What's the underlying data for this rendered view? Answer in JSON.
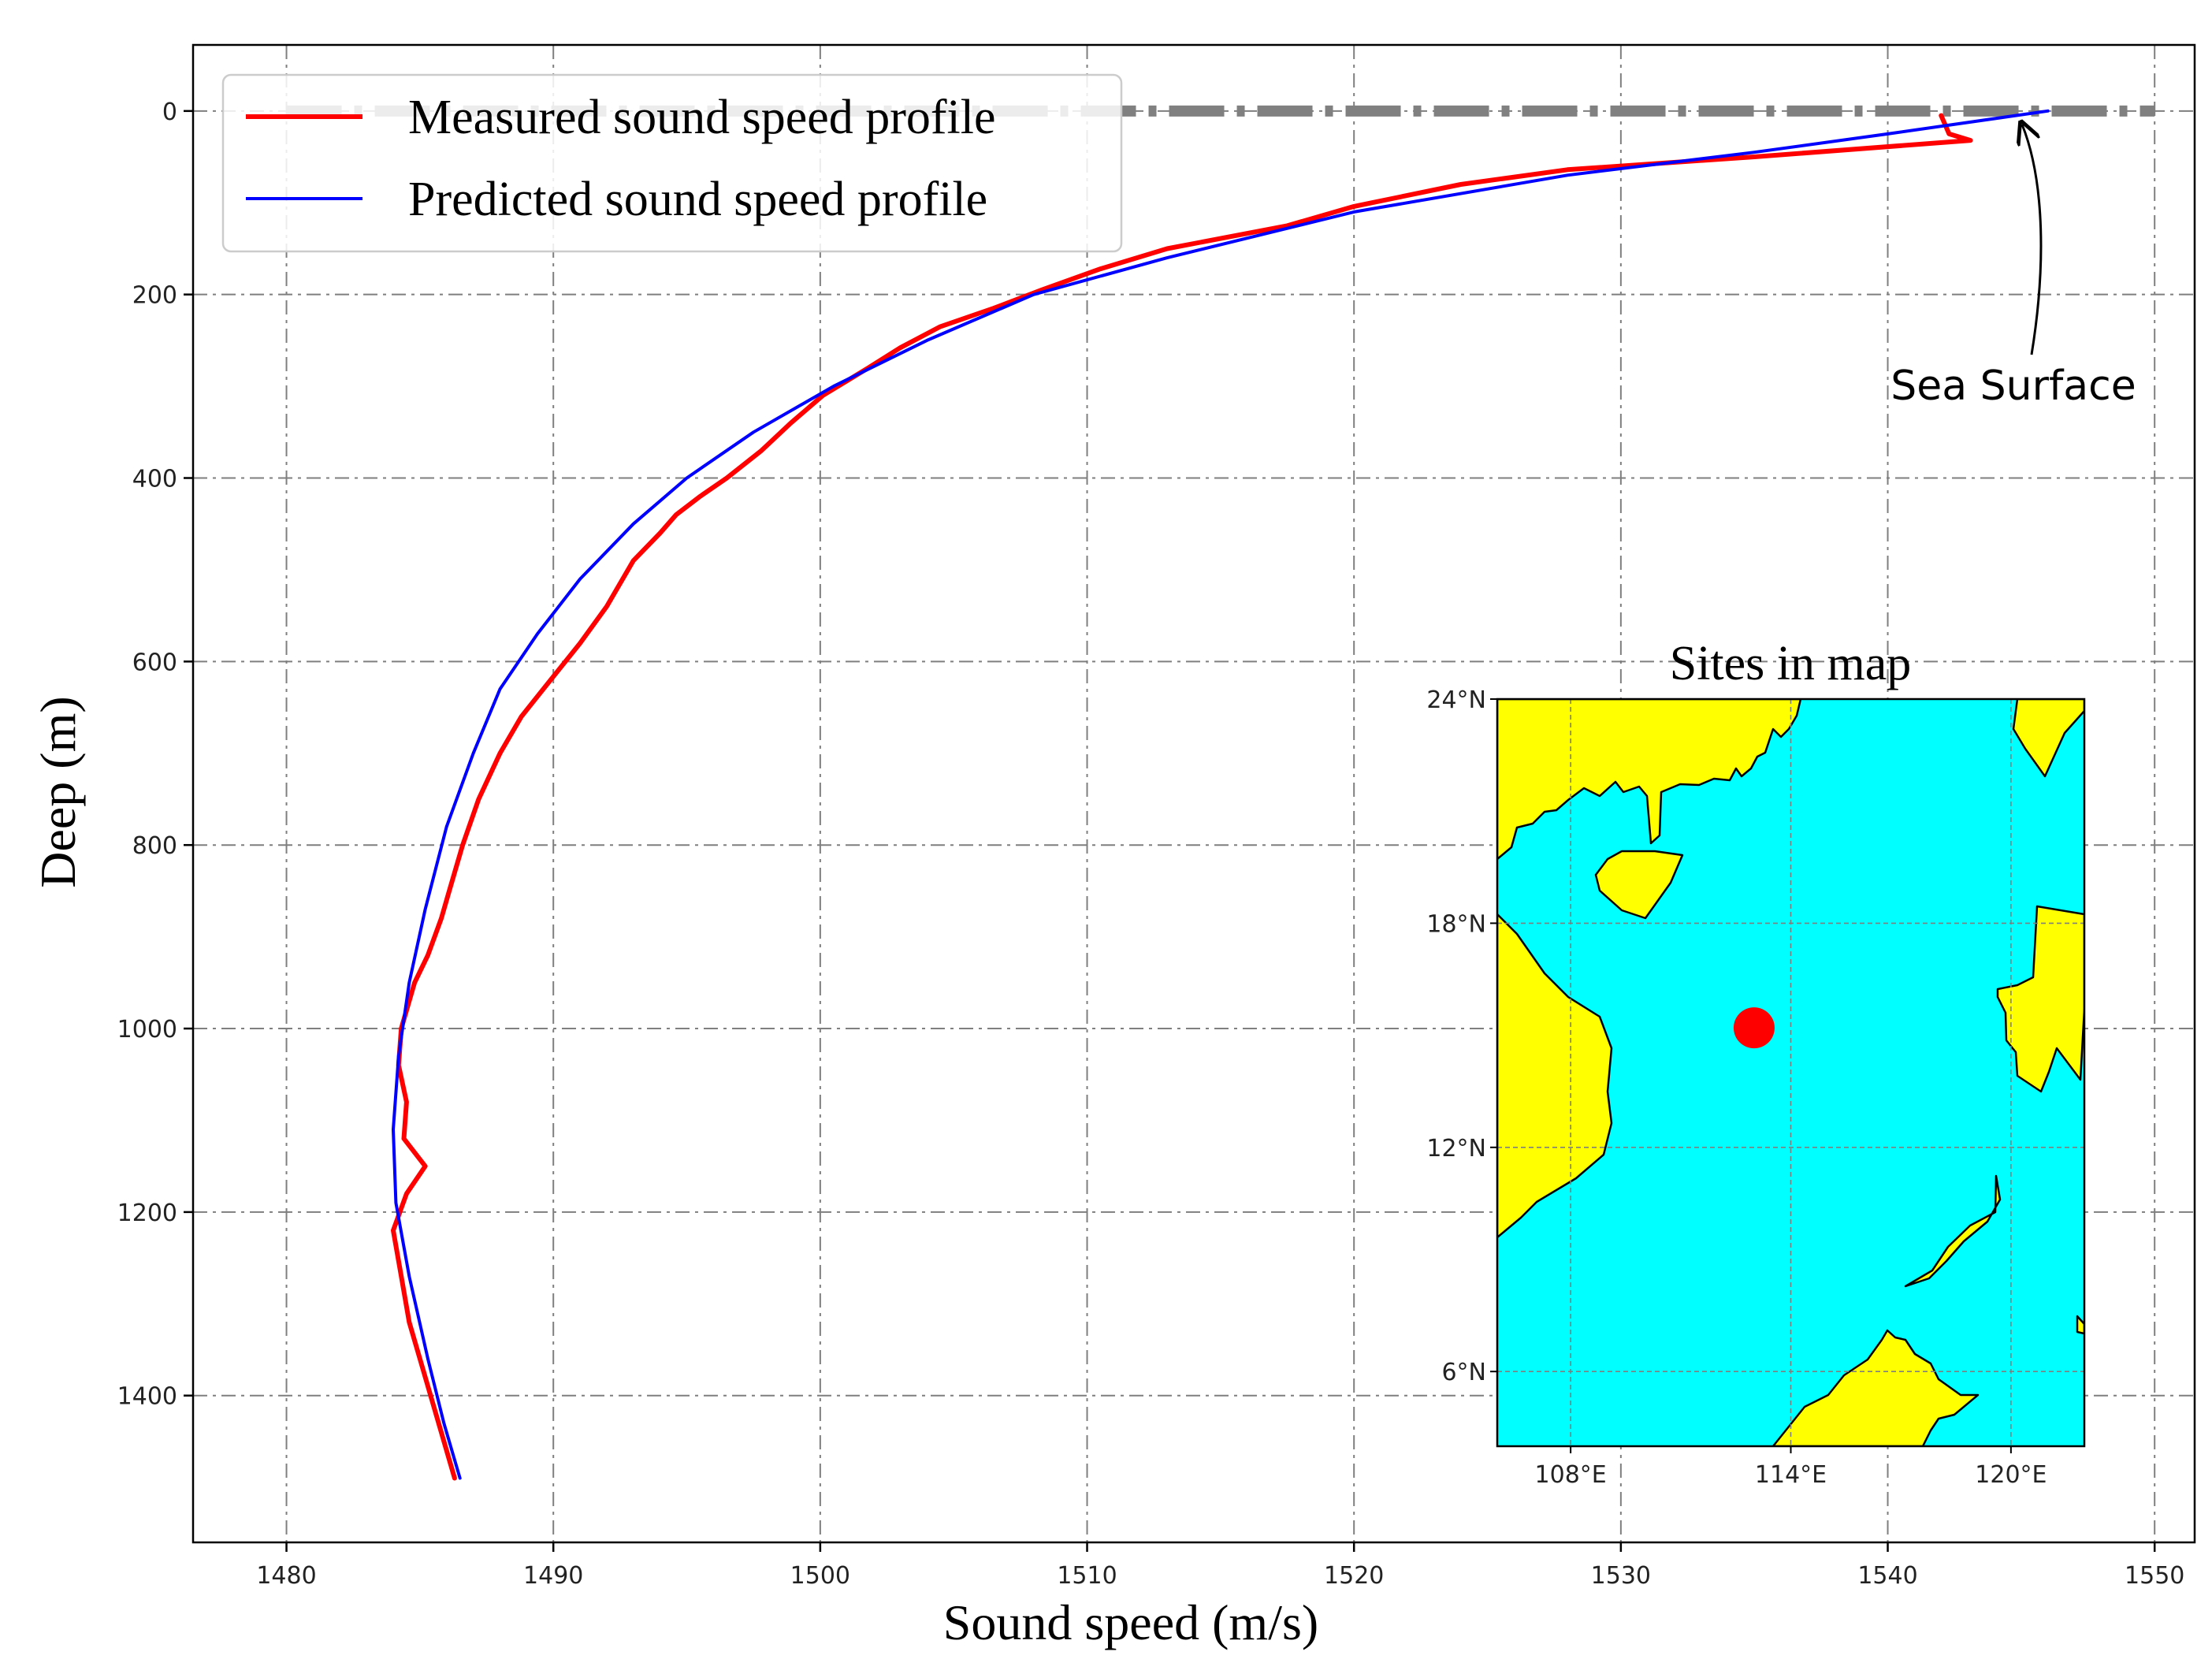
{
  "chart_data": {
    "type": "line",
    "xlabel": "Sound speed (m/s)",
    "ylabel": "Deep (m)",
    "xlim": [
      1476.5,
      1551.5
    ],
    "ylim": [
      1560,
      -72
    ],
    "y_inverted": true,
    "xticks": [
      1480,
      1490,
      1500,
      1510,
      1520,
      1530,
      1540,
      1550
    ],
    "yticks": [
      0,
      200,
      400,
      600,
      800,
      1000,
      1200,
      1400
    ],
    "grid": true,
    "legend_position": "upper-left",
    "series": [
      {
        "name": "Measured sound speed profile",
        "color": "#ff0000",
        "points": [
          [
            1542.0,
            5
          ],
          [
            1542.3,
            25
          ],
          [
            1543.1,
            32
          ],
          [
            1535.0,
            50
          ],
          [
            1528.0,
            64
          ],
          [
            1524.0,
            80
          ],
          [
            1520.0,
            104
          ],
          [
            1517.5,
            125
          ],
          [
            1513.0,
            150
          ],
          [
            1510.5,
            172
          ],
          [
            1508.3,
            195
          ],
          [
            1506.5,
            215
          ],
          [
            1504.5,
            235
          ],
          [
            1503.0,
            258
          ],
          [
            1501.8,
            280
          ],
          [
            1500.1,
            310
          ],
          [
            1498.9,
            340
          ],
          [
            1497.8,
            370
          ],
          [
            1496.5,
            400
          ],
          [
            1495.5,
            420
          ],
          [
            1494.6,
            440
          ],
          [
            1494.0,
            460
          ],
          [
            1493.0,
            490
          ],
          [
            1492.0,
            540
          ],
          [
            1491.0,
            580
          ],
          [
            1489.9,
            620
          ],
          [
            1488.8,
            660
          ],
          [
            1488.0,
            700
          ],
          [
            1487.2,
            750
          ],
          [
            1486.6,
            800
          ],
          [
            1486.1,
            850
          ],
          [
            1485.8,
            880
          ],
          [
            1485.3,
            920
          ],
          [
            1484.8,
            950
          ],
          [
            1484.3,
            1000
          ],
          [
            1484.2,
            1040
          ],
          [
            1484.5,
            1080
          ],
          [
            1484.4,
            1120
          ],
          [
            1485.2,
            1150
          ],
          [
            1484.5,
            1180
          ],
          [
            1484.0,
            1220
          ],
          [
            1484.3,
            1270
          ],
          [
            1484.6,
            1320
          ],
          [
            1485.0,
            1360
          ],
          [
            1485.6,
            1420
          ],
          [
            1486.3,
            1490
          ]
        ]
      },
      {
        "name": "Predicted sound speed profile",
        "color": "#0000ff",
        "points": [
          [
            1546.0,
            0
          ],
          [
            1540.0,
            25
          ],
          [
            1535.0,
            45
          ],
          [
            1528.0,
            70
          ],
          [
            1520.0,
            110
          ],
          [
            1513.0,
            160
          ],
          [
            1508.0,
            200
          ],
          [
            1504.0,
            250
          ],
          [
            1500.5,
            300
          ],
          [
            1497.5,
            350
          ],
          [
            1495.0,
            400
          ],
          [
            1493.0,
            450
          ],
          [
            1491.0,
            510
          ],
          [
            1489.4,
            570
          ],
          [
            1488.0,
            630
          ],
          [
            1487.0,
            700
          ],
          [
            1486.0,
            780
          ],
          [
            1485.2,
            870
          ],
          [
            1484.6,
            950
          ],
          [
            1484.2,
            1030
          ],
          [
            1484.0,
            1110
          ],
          [
            1484.1,
            1190
          ],
          [
            1484.6,
            1270
          ],
          [
            1485.3,
            1360
          ],
          [
            1485.9,
            1430
          ],
          [
            1486.5,
            1490
          ]
        ]
      }
    ],
    "reference_line": {
      "y": 0,
      "x_start": 1480,
      "x_end": 1550,
      "color": "#808080",
      "style": "dash-dot"
    },
    "annotation": {
      "text": "Sea Surface",
      "arrow_to": [
        1547,
        0
      ]
    },
    "inset_map": {
      "title": "Sites in map",
      "lon_range": [
        106,
        122
      ],
      "lat_range": [
        4,
        24
      ],
      "lon_ticks": [
        "108°E",
        "114°E",
        "120°E"
      ],
      "lat_ticks": [
        "24°N",
        "18°N",
        "12°N",
        "6°N"
      ],
      "lon_tick_values": [
        108,
        114,
        120
      ],
      "lat_tick_values": [
        24,
        18,
        12,
        6
      ],
      "site": {
        "lon": 113,
        "lat": 15.2,
        "color": "#ff0000"
      },
      "ocean_color": "#00ffff",
      "land_color": "#ffff00"
    }
  }
}
